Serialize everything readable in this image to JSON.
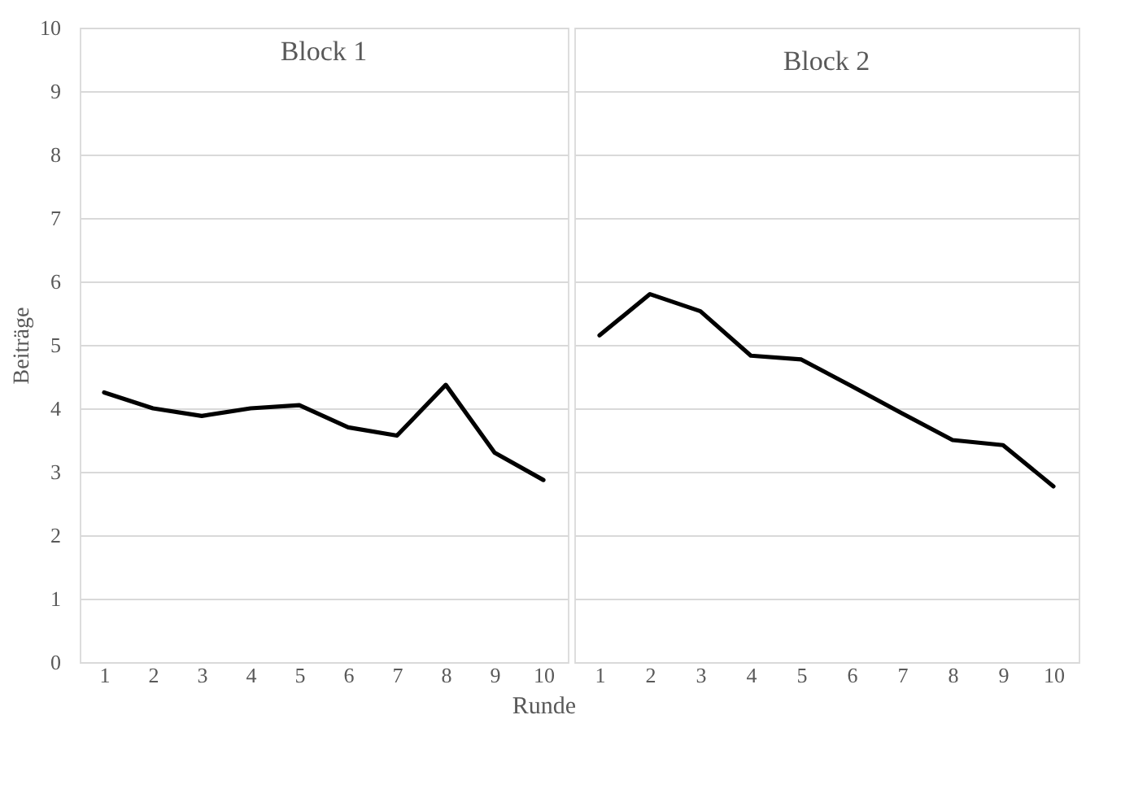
{
  "chart_data": [
    {
      "type": "line",
      "title": "Block 1",
      "ylabel": "Beiträge",
      "xlabel": "Runde",
      "categories": [
        "1",
        "2",
        "3",
        "4",
        "5",
        "6",
        "7",
        "8",
        "9",
        "10"
      ],
      "series": [
        {
          "color": "#000000",
          "values": [
            4.25,
            4.0,
            3.88,
            4.0,
            4.05,
            3.7,
            3.57,
            4.37,
            3.3,
            2.87
          ]
        }
      ],
      "ylim": [
        0,
        10
      ],
      "yticks": [
        0,
        1,
        2,
        3,
        4,
        5,
        6,
        7,
        8,
        9,
        10
      ],
      "grid": "y",
      "legend": false,
      "marker": "none"
    },
    {
      "type": "line",
      "title": "Block 2",
      "categories": [
        "1",
        "2",
        "3",
        "4",
        "5",
        "6",
        "7",
        "8",
        "9",
        "10"
      ],
      "series": [
        {
          "color": "#000000",
          "values": [
            5.15,
            5.8,
            5.53,
            4.83,
            4.77,
            4.35,
            3.92,
            3.5,
            3.42,
            2.77
          ]
        }
      ],
      "ylim": [
        0,
        10
      ],
      "yticks": [
        0,
        1,
        2,
        3,
        4,
        5,
        6,
        7,
        8,
        9,
        10
      ],
      "grid": "y",
      "legend": false,
      "marker": "none",
      "tick_labels": "x"
    }
  ]
}
